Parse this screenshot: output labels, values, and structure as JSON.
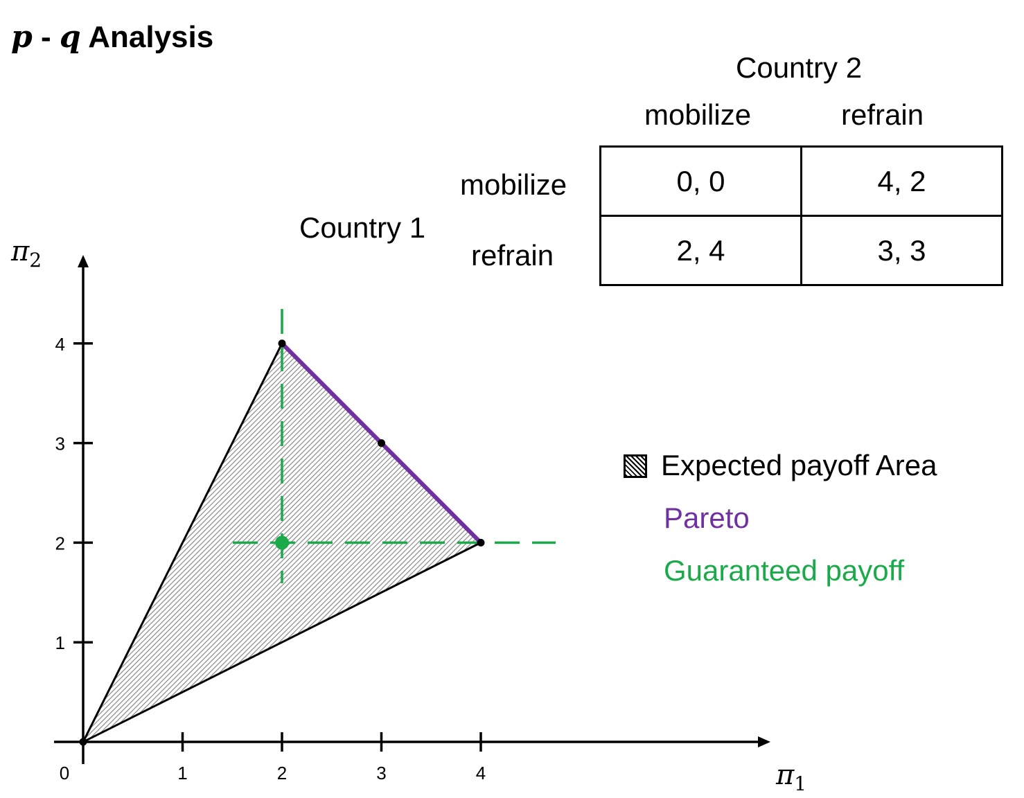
{
  "title": {
    "var_p": "p",
    "dash": " - ",
    "var_q": "q",
    "rest": " Analysis"
  },
  "game": {
    "col_player": "Country 2",
    "row_player": "Country 1",
    "col_strategies": [
      "mobilize",
      "refrain"
    ],
    "row_strategies": [
      "mobilize",
      "refrain"
    ],
    "payoffs": [
      [
        "0,   0",
        "4,   2"
      ],
      [
        "2,  4",
        "3,   3"
      ]
    ]
  },
  "legend": {
    "area": "Expected payoff Area",
    "pareto": "Pareto",
    "guaranteed": "Guaranteed payoff"
  },
  "colors": {
    "pareto": "#7030a0",
    "guaranteed": "#1aaa4a",
    "axis": "#000000",
    "area_fill": "#bfbfbf"
  },
  "chart_data": {
    "type": "area",
    "xlabel_symbol": "π",
    "xlabel_sub": "1",
    "ylabel_symbol": "π",
    "ylabel_sub": "2",
    "xlim": [
      0,
      4
    ],
    "ylim": [
      0,
      4
    ],
    "x_ticks": [
      "0",
      "1",
      "2",
      "3",
      "4"
    ],
    "y_ticks": [
      "1",
      "2",
      "3",
      "4"
    ],
    "payoff_region": [
      [
        0,
        0
      ],
      [
        2,
        4
      ],
      [
        4,
        2
      ]
    ],
    "outcome_points": [
      [
        0,
        0
      ],
      [
        2,
        4
      ],
      [
        3,
        3
      ],
      [
        4,
        2
      ]
    ],
    "pareto_frontier": [
      [
        2,
        4
      ],
      [
        4,
        2
      ]
    ],
    "guaranteed_payoff": {
      "x": 2,
      "y": 2
    },
    "guaranteed_lines": {
      "vertical_x": 2,
      "horizontal_y": 2
    }
  }
}
